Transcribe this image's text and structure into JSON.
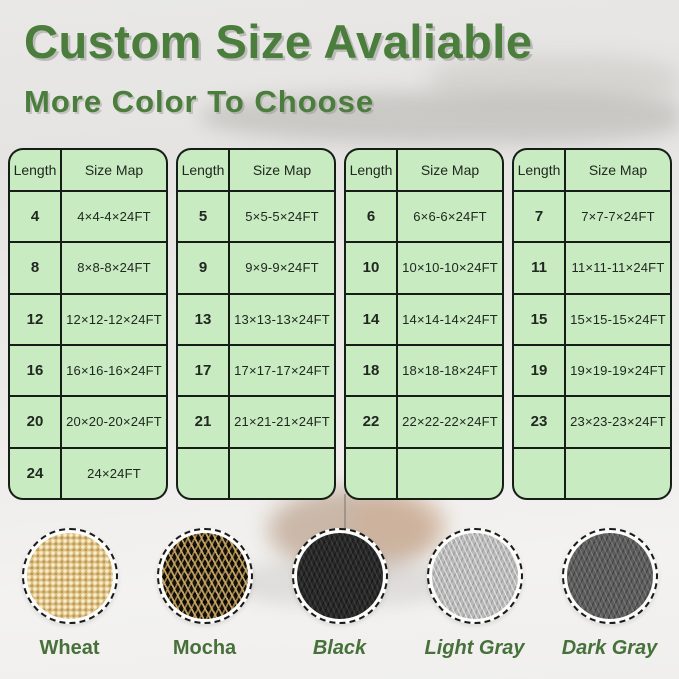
{
  "title": "Custom Size Avaliable",
  "subtitle": "More Color To Choose",
  "tables": [
    {
      "headers": {
        "length": "Length",
        "size": "Size Map"
      },
      "rows": [
        {
          "length": "4",
          "size": "4×4-4×24FT"
        },
        {
          "length": "8",
          "size": "8×8-8×24FT"
        },
        {
          "length": "12",
          "size": "12×12-12×24FT"
        },
        {
          "length": "16",
          "size": "16×16-16×24FT"
        },
        {
          "length": "20",
          "size": "20×20-20×24FT"
        },
        {
          "length": "24",
          "size": "24×24FT"
        }
      ]
    },
    {
      "headers": {
        "length": "Length",
        "size": "Size Map"
      },
      "rows": [
        {
          "length": "5",
          "size": "5×5-5×24FT"
        },
        {
          "length": "9",
          "size": "9×9-9×24FT"
        },
        {
          "length": "13",
          "size": "13×13-13×24FT"
        },
        {
          "length": "17",
          "size": "17×17-17×24FT"
        },
        {
          "length": "21",
          "size": "21×21-21×24FT"
        },
        {
          "length": "",
          "size": ""
        }
      ]
    },
    {
      "headers": {
        "length": "Length",
        "size": "Size Map"
      },
      "rows": [
        {
          "length": "6",
          "size": "6×6-6×24FT"
        },
        {
          "length": "10",
          "size": "10×10-10×24FT"
        },
        {
          "length": "14",
          "size": "14×14-14×24FT"
        },
        {
          "length": "18",
          "size": "18×18-18×24FT"
        },
        {
          "length": "22",
          "size": "22×22-22×24FT"
        },
        {
          "length": "",
          "size": ""
        }
      ]
    },
    {
      "headers": {
        "length": "Length",
        "size": "Size Map"
      },
      "rows": [
        {
          "length": "7",
          "size": "7×7-7×24FT"
        },
        {
          "length": "11",
          "size": "11×11-11×24FT"
        },
        {
          "length": "15",
          "size": "15×15-15×24FT"
        },
        {
          "length": "19",
          "size": "19×19-19×24FT"
        },
        {
          "length": "23",
          "size": "23×23-23×24FT"
        },
        {
          "length": "",
          "size": ""
        }
      ]
    }
  ],
  "swatches": [
    {
      "label": "Wheat"
    },
    {
      "label": "Mocha"
    },
    {
      "label": "Black"
    },
    {
      "label": "Light Gray"
    },
    {
      "label": "Dark Gray"
    }
  ],
  "palette": {
    "title_green": "#4b7d3c",
    "label_green": "#47713a",
    "table_green": "#c8ebc2",
    "table_border": "#161d16",
    "wheat": "#ddbf82",
    "mocha_base": "#16120c",
    "mocha_accent": "#cdab66",
    "black": "#282828",
    "light_gray": "#b9b9b9",
    "dark_gray": "#5d5d5d"
  }
}
